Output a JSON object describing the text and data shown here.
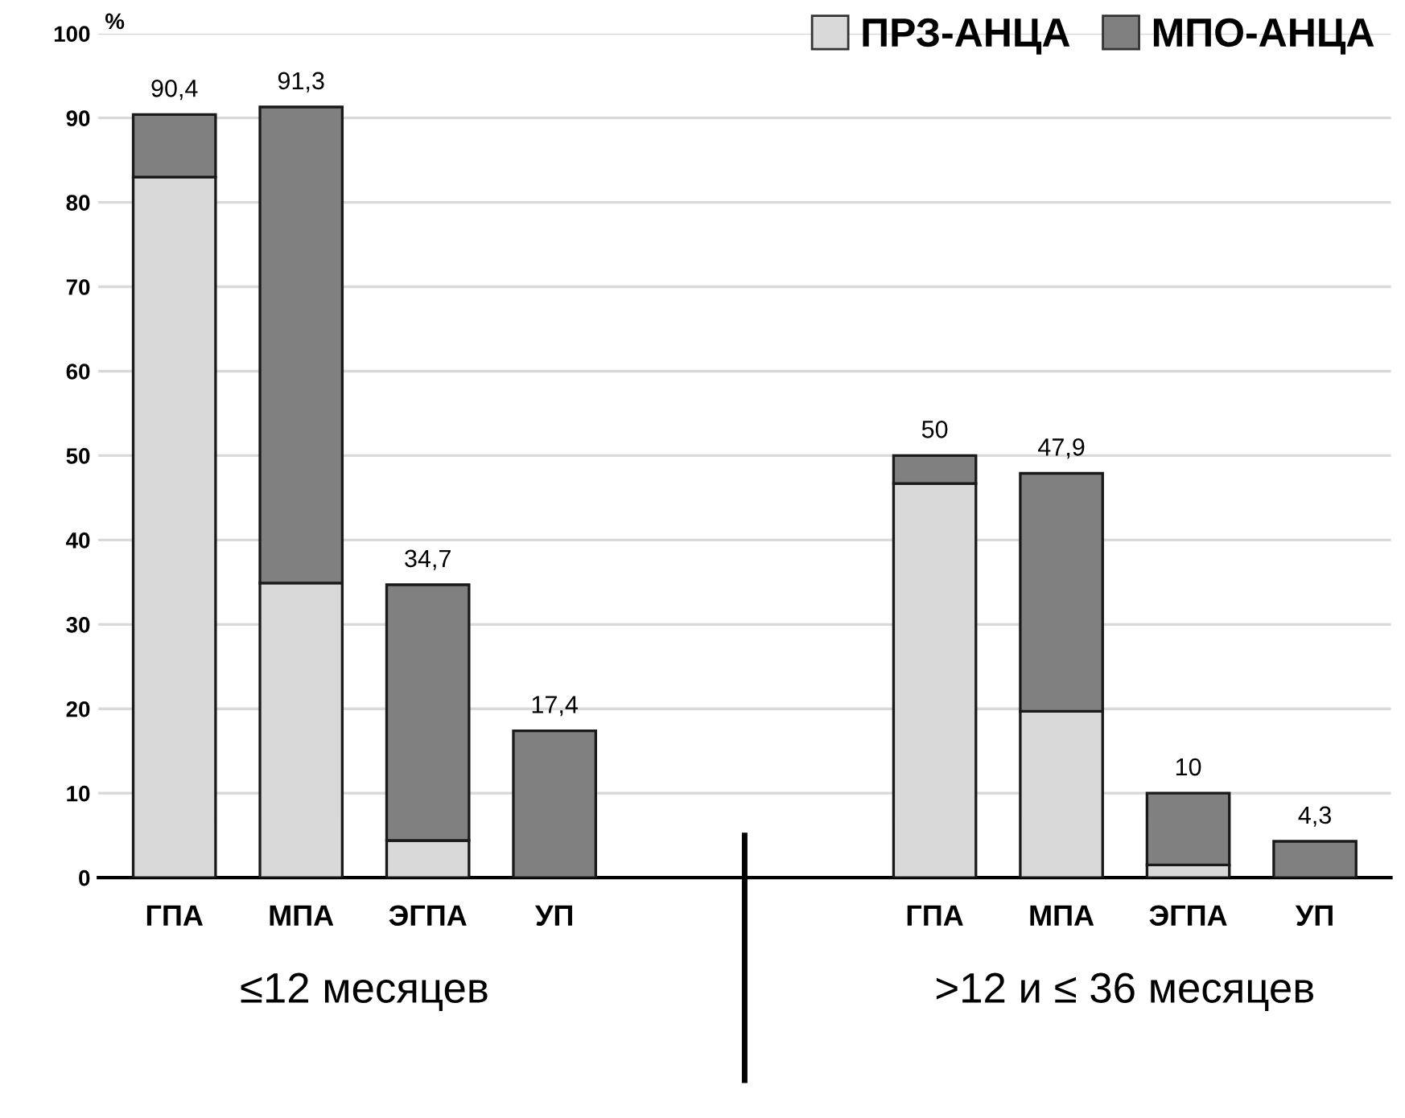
{
  "chart_data": {
    "type": "bar",
    "stacked": true,
    "ylabel": "%",
    "categories": [
      "ГПА",
      "МПА",
      "ЭГПА",
      "УП",
      null,
      null,
      "ГПА",
      "МПА",
      "ЭГПА",
      "УП"
    ],
    "series": [
      {
        "name": "ПРЗ-АНЦА",
        "color": "#d9d9d9",
        "values": [
          83,
          34.9,
          4.4,
          0,
          null,
          null,
          46.7,
          19.7,
          1.5,
          0
        ]
      },
      {
        "name": "МПО-АНЦА",
        "color": "#808080",
        "values": [
          7.4,
          56.4,
          30.3,
          17.4,
          null,
          null,
          3.3,
          28.2,
          8.5,
          4.3
        ]
      }
    ],
    "totals": [
      "90,4",
      "91,3",
      "34,7",
      "17,4",
      null,
      null,
      "50",
      "47,9",
      "10",
      "4,3"
    ],
    "ylim": [
      0,
      100
    ],
    "yticks": [
      0,
      10,
      20,
      30,
      40,
      50,
      60,
      70,
      80,
      90,
      100
    ],
    "grid": "y",
    "legend": "top right",
    "annotations": [
      "≤12 месяцев",
      ">12 и ≤ 36 месяцев"
    ]
  }
}
